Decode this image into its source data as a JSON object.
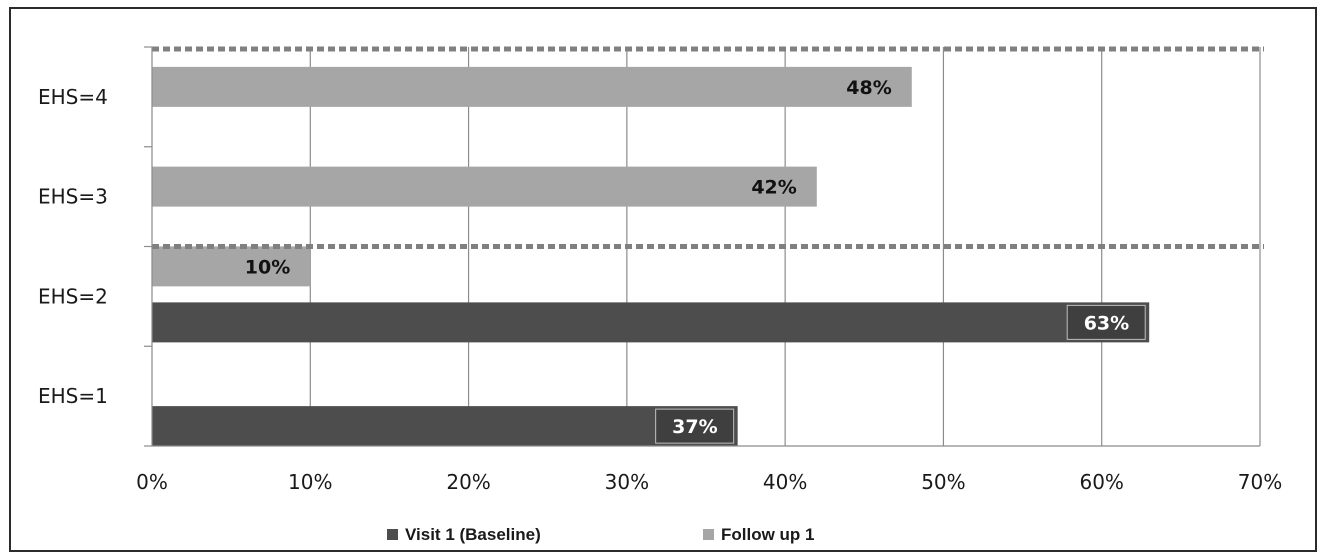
{
  "chart_data": {
    "type": "bar",
    "orientation": "horizontal",
    "categories": [
      "EHS=1",
      "EHS=2",
      "EHS=3",
      "EHS=4"
    ],
    "series": [
      {
        "name": "Visit 1 (Baseline)",
        "color": "#4d4d4d",
        "label_color": "#ffffff",
        "values": [
          37,
          63,
          null,
          null
        ],
        "labels": [
          "37%",
          "63%",
          "",
          ""
        ]
      },
      {
        "name": "Follow up 1",
        "color": "#a6a6a6",
        "label_color": "#111111",
        "values": [
          null,
          10,
          42,
          48
        ],
        "labels": [
          "",
          "10%",
          "42%",
          "48%"
        ]
      }
    ],
    "xlim": [
      0,
      70
    ],
    "x_ticks": [
      "0%",
      "10%",
      "20%",
      "30%",
      "40%",
      "50%",
      "60%",
      "70%"
    ],
    "grid": "vertical",
    "legend_position": "bottom",
    "dashed_separators": "between EHS=2 and EHS=3; above EHS=4"
  }
}
